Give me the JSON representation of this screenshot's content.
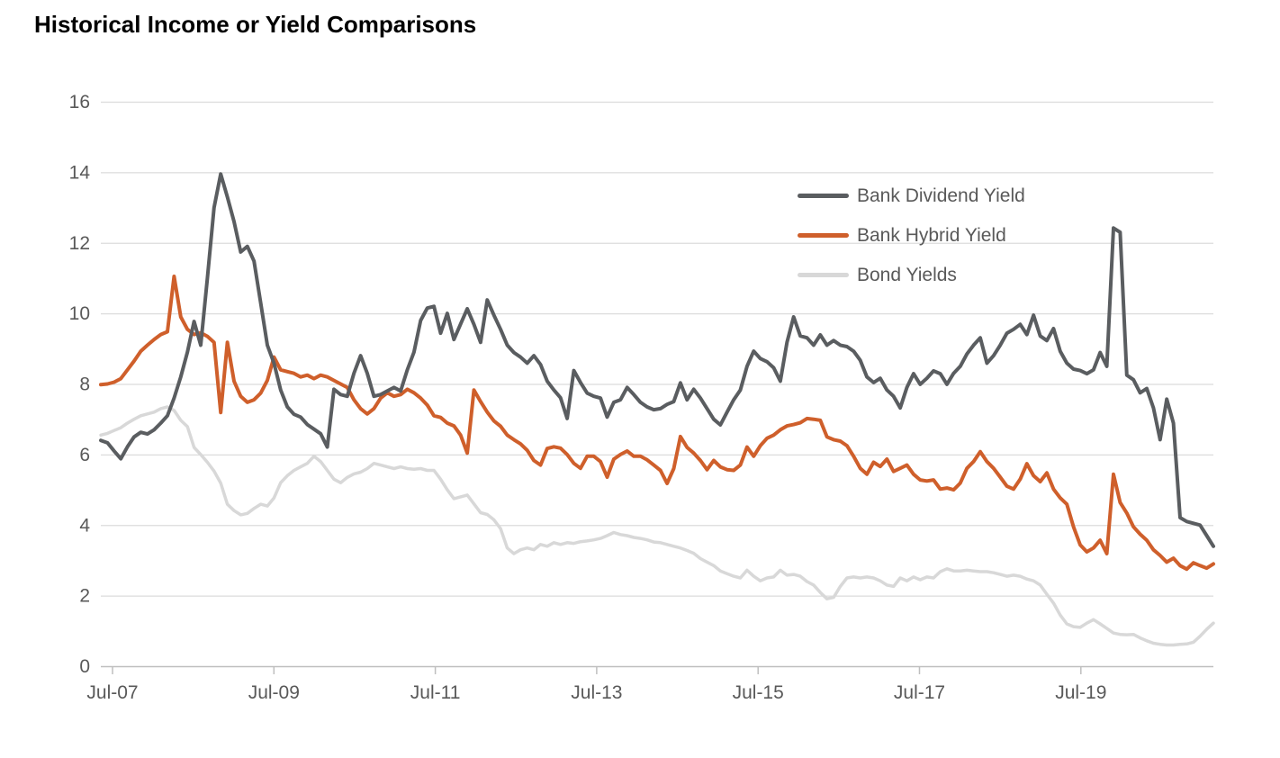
{
  "page": {
    "title": "Historical Income or Yield Comparisons"
  },
  "chart_data": {
    "type": "line",
    "title": "Historical Income or Yield Comparisons",
    "x_unit": "monthly",
    "x_range": [
      "Jul-07",
      "Jun-21"
    ],
    "x_tick_labels": [
      "Jul-07",
      "Jul-09",
      "Jul-11",
      "Jul-13",
      "Jul-15",
      "Jul-17",
      "Jul-19"
    ],
    "x_tick_month_indices": [
      0,
      24,
      48,
      72,
      96,
      120,
      144
    ],
    "ylim": [
      0,
      16
    ],
    "y_ticks": [
      0,
      2,
      4,
      6,
      8,
      10,
      12,
      14,
      16
    ],
    "grid": "horizontal",
    "legend_position": "inside-top-right",
    "axis_text_color": "#595959",
    "series": [
      {
        "name": "Bank Dividend Yield",
        "color": "#5a5d60",
        "values": [
          6.4,
          6.33,
          6.1,
          5.88,
          6.22,
          6.5,
          6.63,
          6.58,
          6.7,
          6.89,
          7.1,
          7.6,
          8.2,
          8.9,
          9.77,
          9.1,
          11.0,
          13.0,
          13.95,
          13.3,
          12.6,
          11.74,
          11.9,
          11.48,
          10.3,
          9.1,
          8.59,
          7.83,
          7.35,
          7.14,
          7.06,
          6.85,
          6.72,
          6.59,
          6.21,
          7.85,
          7.7,
          7.65,
          8.3,
          8.8,
          8.3,
          7.65,
          7.7,
          7.8,
          7.9,
          7.8,
          8.4,
          8.9,
          9.8,
          10.15,
          10.2,
          9.44,
          10.0,
          9.26,
          9.7,
          10.13,
          9.69,
          9.18,
          10.38,
          9.95,
          9.55,
          9.1,
          8.89,
          8.76,
          8.59,
          8.8,
          8.55,
          8.08,
          7.83,
          7.61,
          7.02,
          8.38,
          8.04,
          7.74,
          7.65,
          7.6,
          7.06,
          7.48,
          7.55,
          7.9,
          7.7,
          7.48,
          7.35,
          7.27,
          7.3,
          7.42,
          7.5,
          8.03,
          7.55,
          7.85,
          7.6,
          7.3,
          7.0,
          6.84,
          7.2,
          7.55,
          7.83,
          8.5,
          8.93,
          8.72,
          8.63,
          8.46,
          8.08,
          9.18,
          9.9,
          9.36,
          9.31,
          9.1,
          9.39,
          9.1,
          9.23,
          9.1,
          9.06,
          8.93,
          8.67,
          8.2,
          8.04,
          8.16,
          7.83,
          7.65,
          7.32,
          7.9,
          8.29,
          7.99,
          8.16,
          8.37,
          8.29,
          7.99,
          8.3,
          8.5,
          8.85,
          9.1,
          9.31,
          8.59,
          8.8,
          9.1,
          9.44,
          9.55,
          9.69,
          9.4,
          9.95,
          9.36,
          9.23,
          9.57,
          8.93,
          8.59,
          8.42,
          8.38,
          8.29,
          8.4,
          8.89,
          8.5,
          12.42,
          12.3,
          8.25,
          8.12,
          7.75,
          7.87,
          7.32,
          6.42,
          7.57,
          6.89,
          4.21,
          4.1,
          4.05,
          4.0,
          3.7,
          3.4
        ]
      },
      {
        "name": "Bank Hybrid Yield",
        "color": "#cf5f2b",
        "values": [
          7.98,
          8.0,
          8.05,
          8.15,
          8.4,
          8.65,
          8.93,
          9.1,
          9.26,
          9.4,
          9.48,
          11.05,
          9.9,
          9.55,
          9.4,
          9.45,
          9.35,
          9.18,
          7.19,
          9.18,
          8.08,
          7.65,
          7.48,
          7.55,
          7.74,
          8.1,
          8.76,
          8.4,
          8.35,
          8.3,
          8.2,
          8.25,
          8.15,
          8.25,
          8.2,
          8.1,
          8.0,
          7.9,
          7.55,
          7.3,
          7.15,
          7.3,
          7.6,
          7.75,
          7.65,
          7.7,
          7.85,
          7.75,
          7.6,
          7.4,
          7.1,
          7.05,
          6.89,
          6.81,
          6.55,
          6.04,
          7.83,
          7.5,
          7.2,
          6.95,
          6.8,
          6.55,
          6.42,
          6.3,
          6.12,
          5.83,
          5.7,
          6.17,
          6.22,
          6.18,
          6.0,
          5.75,
          5.61,
          5.95,
          5.95,
          5.8,
          5.36,
          5.87,
          6.0,
          6.1,
          5.95,
          5.95,
          5.85,
          5.7,
          5.55,
          5.18,
          5.6,
          6.51,
          6.2,
          6.04,
          5.83,
          5.57,
          5.83,
          5.65,
          5.57,
          5.55,
          5.7,
          6.21,
          5.95,
          6.25,
          6.46,
          6.55,
          6.7,
          6.81,
          6.85,
          6.9,
          7.02,
          7.0,
          6.97,
          6.5,
          6.42,
          6.38,
          6.25,
          5.95,
          5.61,
          5.44,
          5.78,
          5.66,
          5.87,
          5.52,
          5.61,
          5.7,
          5.44,
          5.28,
          5.25,
          5.28,
          5.02,
          5.05,
          5.0,
          5.19,
          5.61,
          5.8,
          6.08,
          5.8,
          5.61,
          5.36,
          5.1,
          5.02,
          5.3,
          5.74,
          5.4,
          5.23,
          5.48,
          5.02,
          4.77,
          4.59,
          3.95,
          3.44,
          3.24,
          3.35,
          3.57,
          3.19,
          5.44,
          4.64,
          4.34,
          3.95,
          3.74,
          3.57,
          3.3,
          3.14,
          2.95,
          3.06,
          2.85,
          2.75,
          2.93,
          2.85,
          2.78,
          2.9
        ]
      },
      {
        "name": "Bond Yields",
        "color": "#d8d8d8",
        "values": [
          6.55,
          6.6,
          6.68,
          6.76,
          6.89,
          7.0,
          7.1,
          7.15,
          7.2,
          7.3,
          7.35,
          7.25,
          6.97,
          6.79,
          6.2,
          6.0,
          5.78,
          5.53,
          5.19,
          4.59,
          4.41,
          4.29,
          4.33,
          4.47,
          4.59,
          4.54,
          4.77,
          5.2,
          5.4,
          5.55,
          5.65,
          5.75,
          5.95,
          5.8,
          5.55,
          5.3,
          5.2,
          5.35,
          5.45,
          5.5,
          5.6,
          5.75,
          5.7,
          5.65,
          5.6,
          5.65,
          5.6,
          5.58,
          5.6,
          5.55,
          5.55,
          5.3,
          5.0,
          4.75,
          4.8,
          4.85,
          4.6,
          4.35,
          4.3,
          4.15,
          3.9,
          3.35,
          3.19,
          3.3,
          3.35,
          3.3,
          3.45,
          3.4,
          3.5,
          3.45,
          3.5,
          3.48,
          3.53,
          3.55,
          3.58,
          3.62,
          3.7,
          3.79,
          3.73,
          3.7,
          3.65,
          3.62,
          3.58,
          3.52,
          3.5,
          3.45,
          3.4,
          3.35,
          3.28,
          3.2,
          3.05,
          2.95,
          2.85,
          2.7,
          2.62,
          2.55,
          2.5,
          2.72,
          2.55,
          2.42,
          2.5,
          2.53,
          2.72,
          2.58,
          2.6,
          2.55,
          2.4,
          2.3,
          2.09,
          1.91,
          1.95,
          2.26,
          2.5,
          2.53,
          2.5,
          2.53,
          2.5,
          2.42,
          2.3,
          2.26,
          2.5,
          2.42,
          2.53,
          2.45,
          2.53,
          2.5,
          2.68,
          2.76,
          2.7,
          2.7,
          2.72,
          2.7,
          2.68,
          2.68,
          2.65,
          2.6,
          2.55,
          2.58,
          2.55,
          2.47,
          2.42,
          2.3,
          2.04,
          1.79,
          1.45,
          1.2,
          1.12,
          1.1,
          1.22,
          1.32,
          1.2,
          1.07,
          0.94,
          0.9,
          0.89,
          0.9,
          0.8,
          0.72,
          0.65,
          0.62,
          0.6,
          0.6,
          0.62,
          0.63,
          0.68,
          0.85,
          1.05,
          1.22
        ]
      }
    ]
  }
}
